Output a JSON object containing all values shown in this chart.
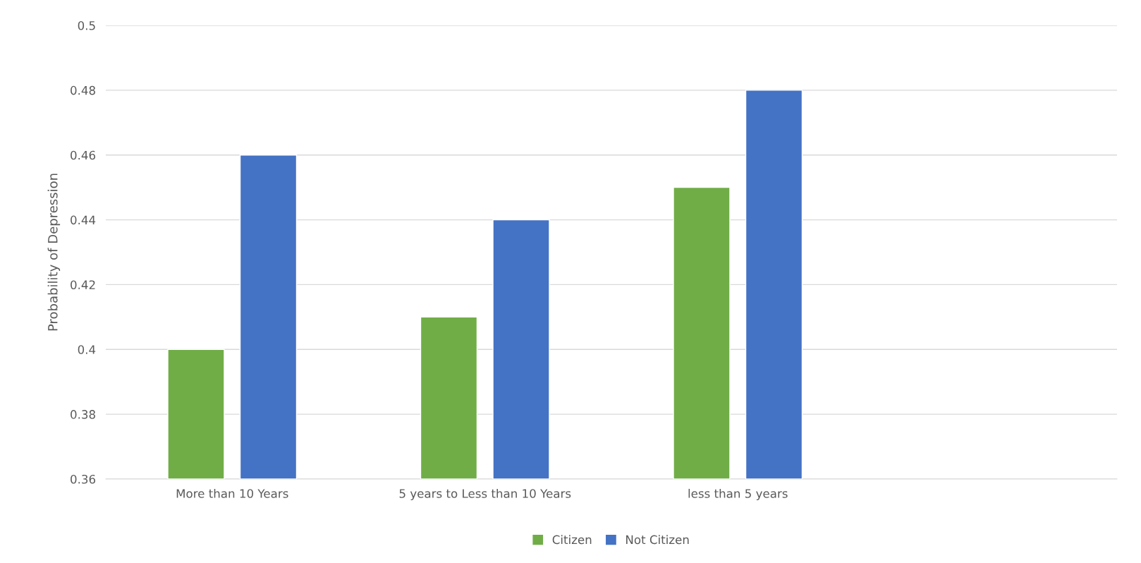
{
  "chart_data": {
    "type": "bar",
    "ylabel": "Probability of Depression",
    "categories": [
      "More than 10 Years",
      "5 years to Less than 10 Years",
      "less than 5 years",
      null
    ],
    "series": [
      {
        "name": "Citizen",
        "color": "#70ad47",
        "values": [
          0.4,
          0.41,
          0.45,
          null
        ]
      },
      {
        "name": "Not Citizen",
        "color": "#4472c4",
        "values": [
          0.46,
          0.44,
          0.48,
          null
        ]
      }
    ],
    "ylim": [
      0.36,
      0.5
    ],
    "yticks": [
      0.36,
      0.38,
      0.4,
      0.42,
      0.44,
      0.46,
      0.48,
      0.5
    ],
    "grid": "y",
    "legend": "bottom"
  }
}
